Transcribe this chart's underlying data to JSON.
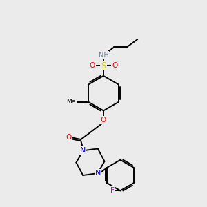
{
  "bg_color": "#ebebeb",
  "bond_color": "#000000",
  "atom_colors": {
    "N": "#0000cc",
    "O": "#ff0000",
    "S": "#cccc00",
    "F": "#cc00cc",
    "H": "#708090",
    "C": "#000000"
  }
}
